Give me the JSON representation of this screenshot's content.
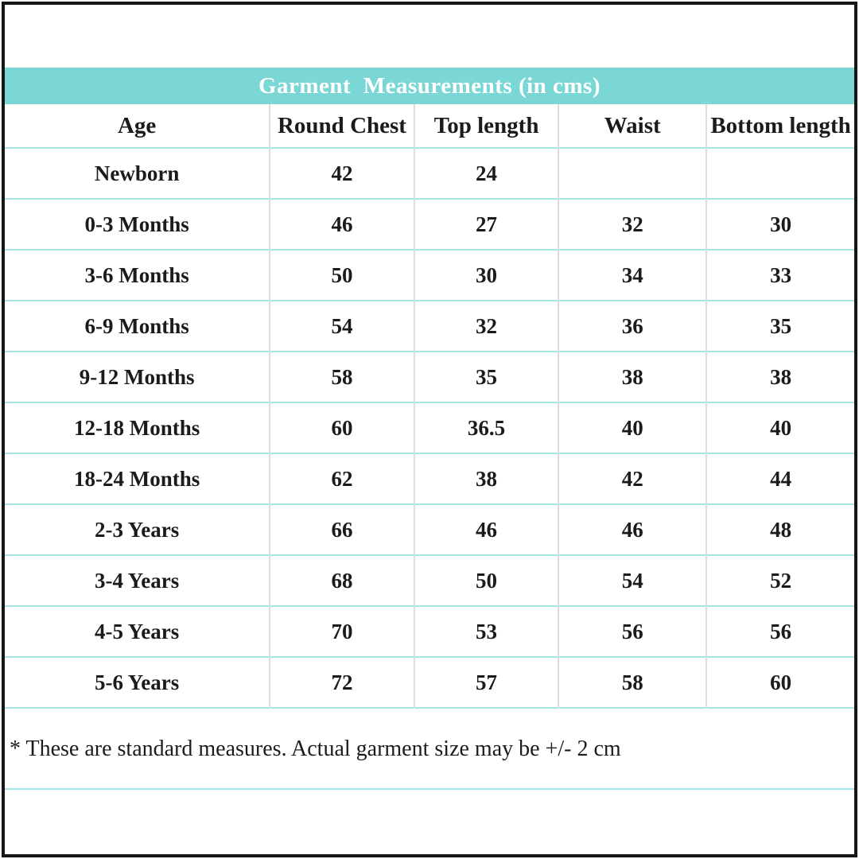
{
  "page": {
    "title": "Garment  Measurements (in cms)",
    "footnote": "* These are standard measures. Actual garment size may be +/- 2 cm"
  },
  "table": {
    "columns": [
      "Age",
      "Round Chest",
      "Top length",
      "Waist",
      "Bottom length"
    ],
    "rows": [
      [
        "Newborn",
        "42",
        "24",
        "",
        ""
      ],
      [
        "0-3 Months",
        "46",
        "27",
        "32",
        "30"
      ],
      [
        "3-6 Months",
        "50",
        "30",
        "34",
        "33"
      ],
      [
        "6-9 Months",
        "54",
        "32",
        "36",
        "35"
      ],
      [
        "9-12 Months",
        "58",
        "35",
        "38",
        "38"
      ],
      [
        "12-18 Months",
        "60",
        "36.5",
        "40",
        "40"
      ],
      [
        "18-24 Months",
        "62",
        "38",
        "42",
        "44"
      ],
      [
        "2-3 Years",
        "66",
        "46",
        "46",
        "48"
      ],
      [
        "3-4 Years",
        "68",
        "50",
        "54",
        "52"
      ],
      [
        "4-5 Years",
        "70",
        "53",
        "56",
        "56"
      ],
      [
        "5-6 Years",
        "72",
        "57",
        "58",
        "60"
      ]
    ]
  },
  "colors": {
    "band_background": "#7bd6d6",
    "row_separator": "#a3e5e9",
    "column_separator": "#dddddd",
    "page_border": "#161616",
    "title_text": "#ffffff",
    "body_text": "#1b1b1b"
  }
}
